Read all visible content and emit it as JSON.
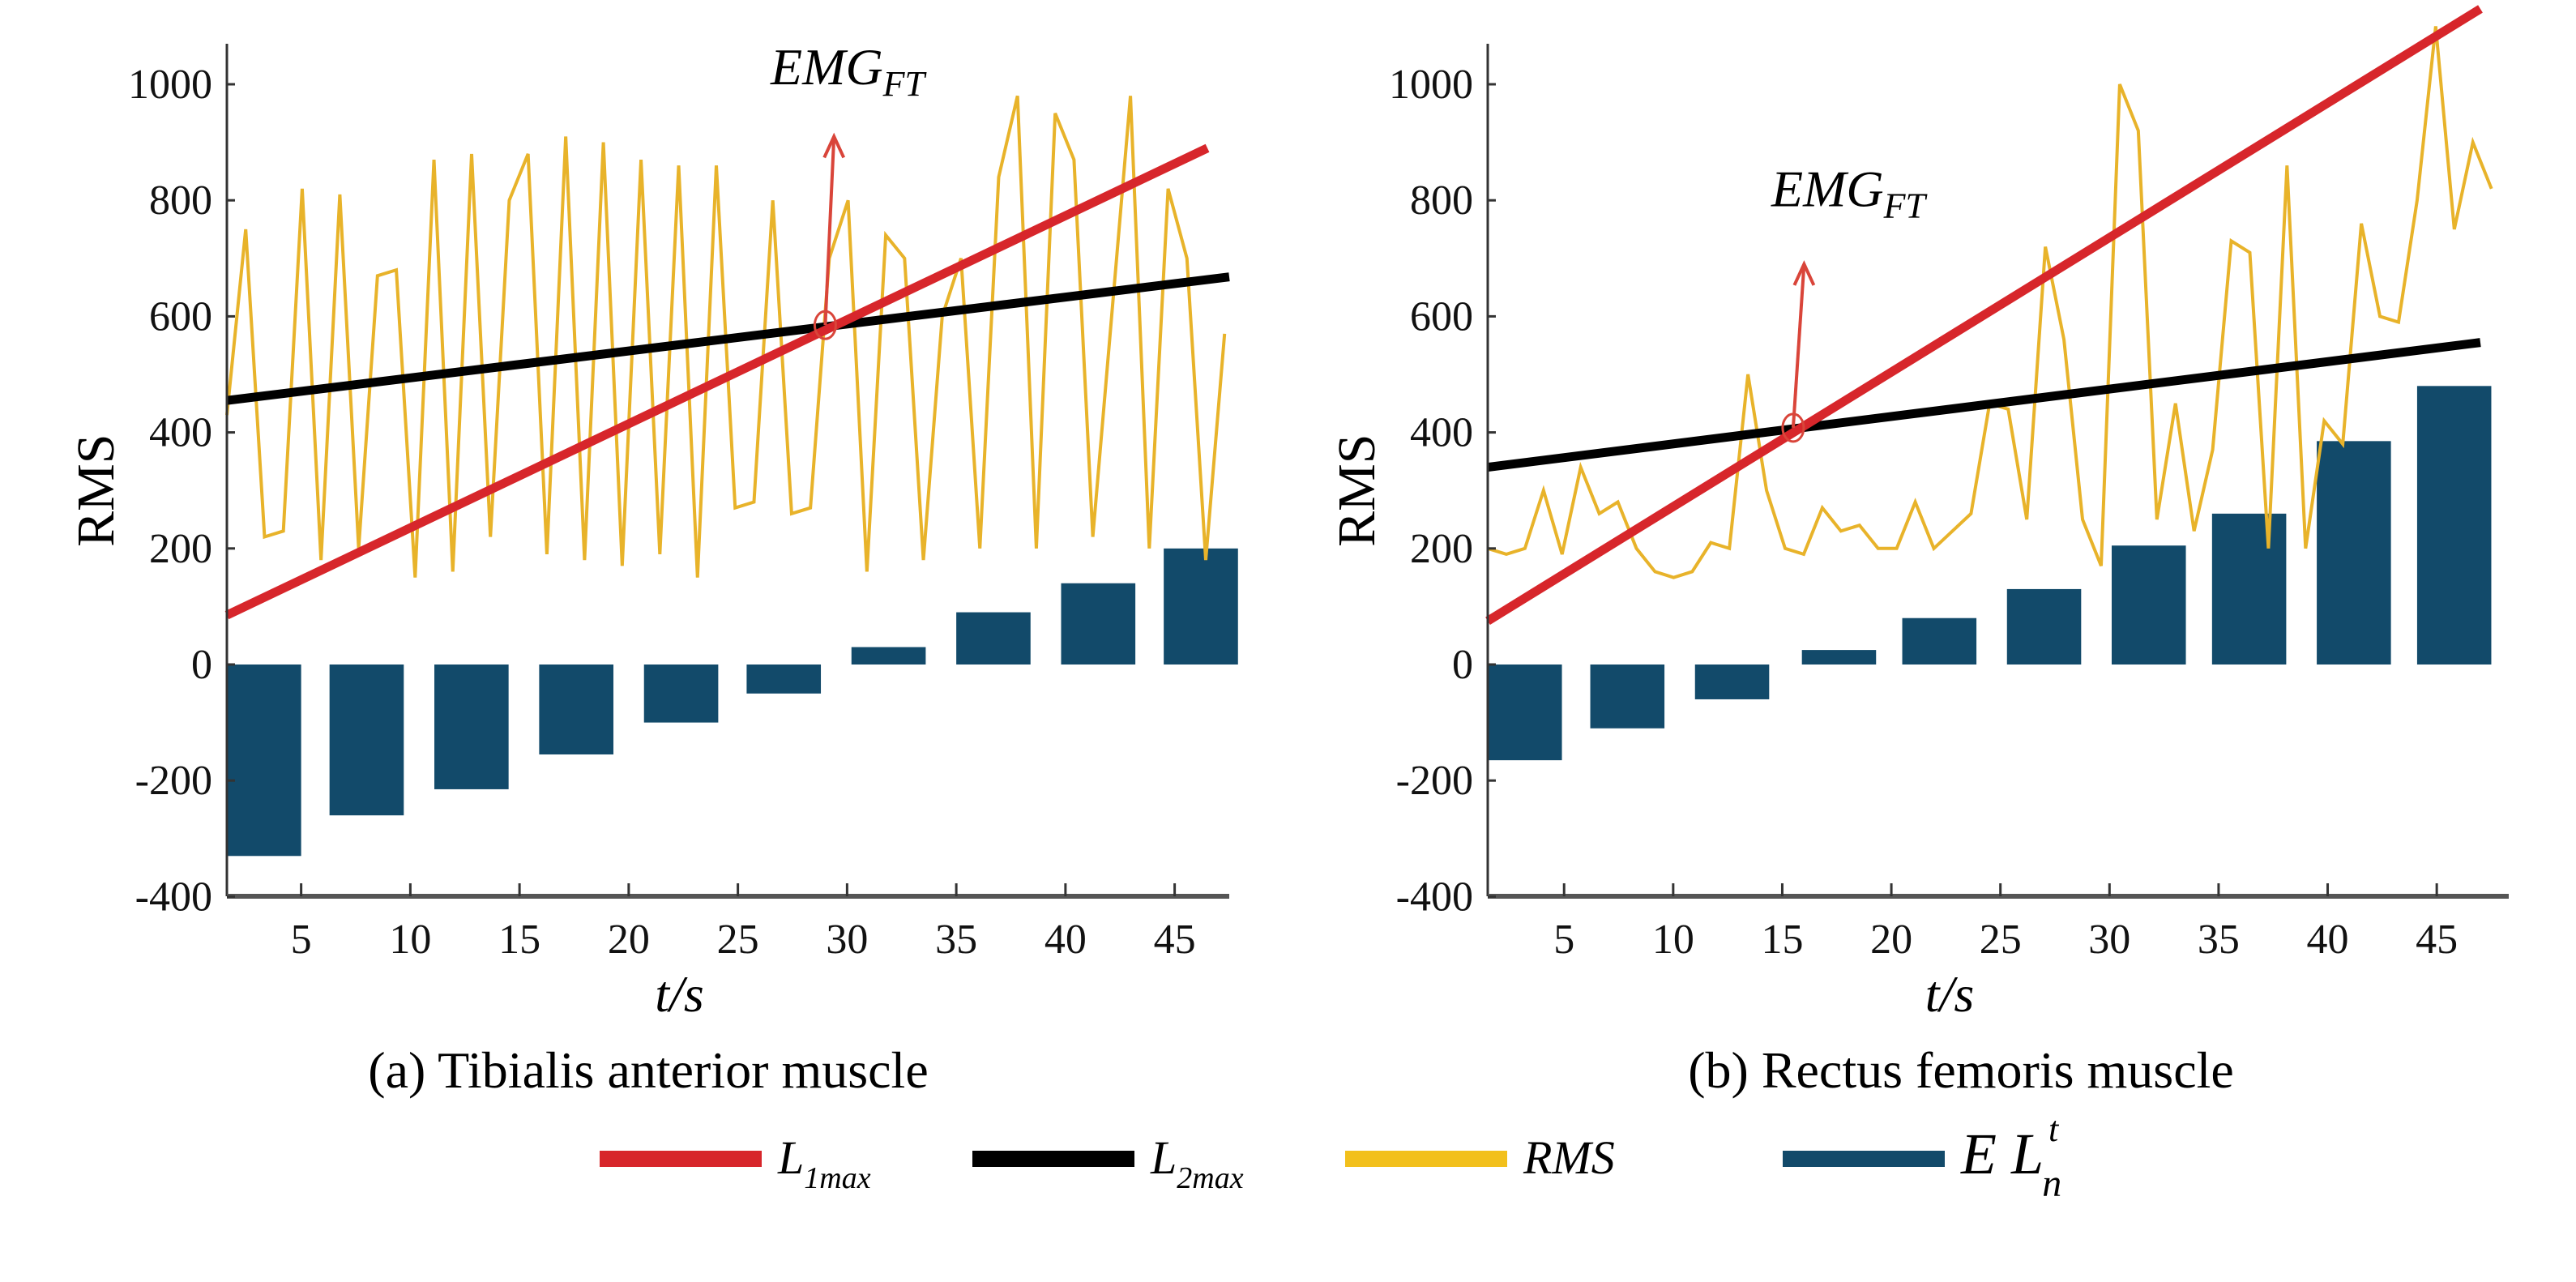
{
  "colors": {
    "l1max": "#d7262b",
    "l2max": "#000000",
    "rms": "#e8b32a",
    "bars": "#124a6a",
    "legend_rms": "#f2c01c",
    "arrow": "#d9453a"
  },
  "legend": [
    {
      "key": "l1max",
      "base": "L",
      "sub": "1max",
      "sup": ""
    },
    {
      "key": "l2max",
      "base": "L",
      "sub": "2max",
      "sup": ""
    },
    {
      "key": "rms",
      "base": "RMS",
      "sub": "",
      "sup": ""
    },
    {
      "key": "bars",
      "base": "E  L",
      "sub": "n",
      "sup": "t"
    }
  ],
  "chart_data": [
    {
      "type": "bar+line",
      "title": "(a) Tibialis anterior muscle",
      "xlabel": "t/s",
      "ylabel": "RMS",
      "xlim": [
        1.6,
        47.5
      ],
      "ylim": [
        -400,
        1000
      ],
      "xticks": [
        "5",
        "10",
        "15",
        "20",
        "25",
        "30",
        "35",
        "40",
        "45"
      ],
      "yticks": [
        "1000",
        "800",
        "600",
        "400",
        "200",
        "0",
        "-200",
        "-400"
      ],
      "annotation": {
        "base": "EMG",
        "sub": "FT",
        "point": [
          29,
          585
        ],
        "arrow_to": [
          29.4,
          910
        ],
        "label_at": [
          26.5,
          1000
        ]
      },
      "l1max": {
        "t": [
          1.6,
          46.5
        ],
        "values": [
          85,
          890
        ]
      },
      "l2max": {
        "t": [
          1.6,
          47.5
        ],
        "values": [
          455,
          668
        ]
      },
      "rms": {
        "t_start": 1.6,
        "t_step": 0.862,
        "values": [
          430,
          750,
          220,
          230,
          820,
          180,
          810,
          200,
          670,
          680,
          150,
          870,
          160,
          880,
          220,
          800,
          880,
          190,
          910,
          180,
          900,
          170,
          870,
          190,
          860,
          150,
          860,
          270,
          280,
          800,
          260,
          270,
          700,
          800,
          160,
          740,
          700,
          180,
          600,
          700,
          200,
          840,
          980,
          200,
          950,
          870,
          220,
          600,
          980,
          200,
          820,
          700,
          180,
          570
        ]
      },
      "bars": {
        "t": [
          3.3,
          8.0,
          12.8,
          17.6,
          22.4,
          27.1,
          31.9,
          36.7,
          41.5,
          46.2
        ],
        "values": [
          -330,
          -260,
          -215,
          -155,
          -100,
          -50,
          30,
          90,
          140,
          200
        ],
        "width": 3.4
      }
    },
    {
      "type": "bar+line",
      "title": "(b) Rectus femoris muscle",
      "xlabel": "t/s",
      "ylabel": "RMS",
      "xlim": [
        1.5,
        48.3
      ],
      "ylim": [
        -400,
        1000
      ],
      "xticks": [
        "5",
        "10",
        "15",
        "20",
        "25",
        "30",
        "35",
        "40",
        "45"
      ],
      "yticks": [
        "1000",
        "800",
        "600",
        "400",
        "200",
        "0",
        "-200",
        "-400"
      ],
      "annotation": {
        "base": "EMG",
        "sub": "FT",
        "point": [
          15.5,
          408
        ],
        "arrow_to": [
          16,
          690
        ],
        "label_at": [
          14.5,
          790
        ]
      },
      "l1max": {
        "t": [
          1.5,
          47
        ],
        "values": [
          75,
          1130
        ]
      },
      "l2max": {
        "t": [
          1.5,
          47
        ],
        "values": [
          340,
          555
        ]
      },
      "rms": {
        "t_start": 1.5,
        "t_step": 0.852,
        "values": [
          200,
          190,
          200,
          300,
          190,
          340,
          260,
          280,
          200,
          160,
          150,
          160,
          210,
          200,
          500,
          300,
          200,
          190,
          270,
          230,
          240,
          200,
          200,
          280,
          200,
          230,
          260,
          450,
          440,
          250,
          720,
          560,
          250,
          170,
          1000,
          920,
          250,
          450,
          230,
          370,
          730,
          710,
          200,
          860,
          200,
          420,
          380,
          760,
          600,
          590,
          800,
          1100,
          750,
          900,
          820
        ]
      },
      "bars": {
        "t": [
          3.2,
          7.9,
          12.7,
          17.6,
          22.2,
          27.0,
          31.8,
          36.4,
          41.2,
          45.8
        ],
        "values": [
          -165,
          -110,
          -60,
          25,
          80,
          130,
          205,
          260,
          385,
          480
        ],
        "width": 3.4
      }
    }
  ]
}
